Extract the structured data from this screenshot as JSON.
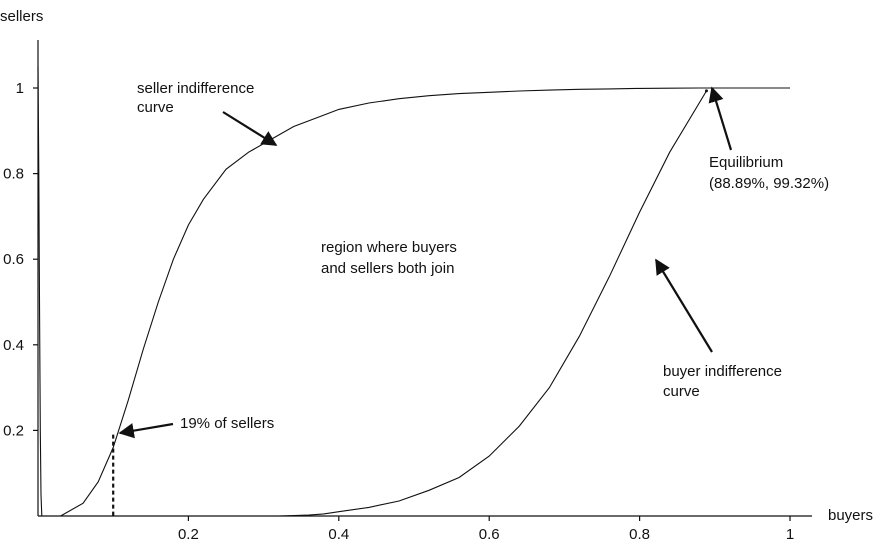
{
  "chart_data": {
    "type": "line",
    "xlabel": "buyers",
    "ylabel": "sellers",
    "xlim": [
      0,
      1
    ],
    "ylim": [
      0,
      1.05
    ],
    "x_ticks": [
      0.2,
      0.4,
      0.6,
      0.8,
      1
    ],
    "x_tick_labels": [
      "0.2",
      "0.4",
      "0.6",
      "0.8",
      "1"
    ],
    "y_ticks": [
      0.2,
      0.4,
      0.6,
      0.8,
      1
    ],
    "y_tick_labels": [
      "0.2",
      "0.4",
      "0.6",
      "0.8",
      "1"
    ],
    "grid": false,
    "series": [
      {
        "x": [
          0.03,
          0.06,
          0.08,
          0.1,
          0.12,
          0.14,
          0.16,
          0.18,
          0.2,
          0.22,
          0.25,
          0.28,
          0.31,
          0.34,
          0.37,
          0.4,
          0.44,
          0.48,
          0.52,
          0.56,
          0.6,
          0.64,
          0.68,
          0.72,
          0.76,
          0.8,
          0.84,
          0.88,
          0.9,
          1.0
        ],
        "y": [
          0.0,
          0.03,
          0.08,
          0.16,
          0.27,
          0.39,
          0.5,
          0.6,
          0.68,
          0.74,
          0.81,
          0.85,
          0.88,
          0.91,
          0.93,
          0.95,
          0.965,
          0.975,
          0.982,
          0.987,
          0.99,
          0.993,
          0.995,
          0.997,
          0.998,
          0.999,
          0.9995,
          1.0,
          1.0,
          1.0
        ]
      },
      {
        "x": [
          0.32,
          0.36,
          0.38,
          0.4,
          0.44,
          0.48,
          0.52,
          0.56,
          0.6,
          0.64,
          0.68,
          0.72,
          0.76,
          0.8,
          0.84,
          0.8889
        ],
        "y": [
          0.0,
          0.002,
          0.005,
          0.01,
          0.02,
          0.035,
          0.06,
          0.09,
          0.14,
          0.21,
          0.3,
          0.42,
          0.56,
          0.71,
          0.85,
          0.9932
        ]
      },
      {
        "x": [
          0.0,
          0.001,
          0.002,
          0.003,
          0.004,
          0.005
        ],
        "y": [
          1.05,
          0.8,
          0.5,
          0.2,
          0.05,
          0.0
        ]
      }
    ],
    "marker": {
      "x": 0.1,
      "y": 0.19
    },
    "equilibrium": {
      "x": 0.8889,
      "y": 0.9932
    },
    "annotations": {
      "seller_curve_line1": "seller indifference",
      "seller_curve_line2": "curve",
      "region_line1": "region where buyers",
      "region_line2": "and sellers both join",
      "equilibrium_line1": "Equilibrium",
      "equilibrium_line2": "(88.89%, 99.32%)",
      "buyer_curve_line1": "buyer indifference",
      "buyer_curve_line2": "curve",
      "sellers_pct": "19% of sellers"
    }
  }
}
